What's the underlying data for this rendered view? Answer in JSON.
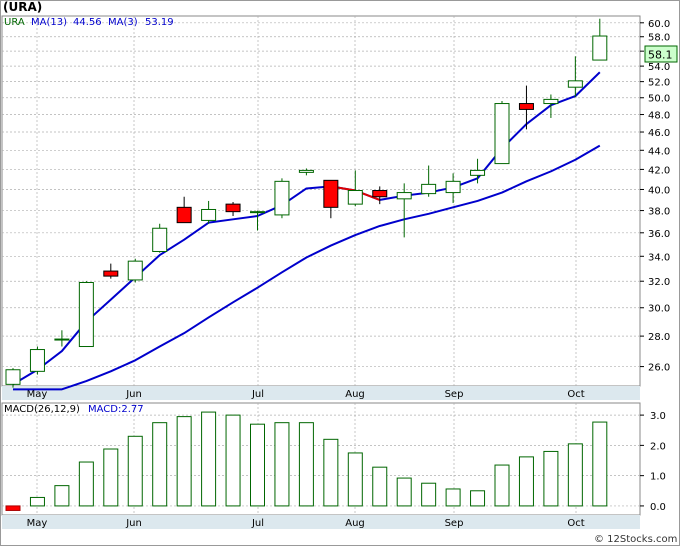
{
  "title": "(URA)",
  "watermark": "© 12Stocks.com",
  "colors": {
    "up_stroke": "#006600",
    "down_fill": "#ff0000",
    "ma_fast": "#0000cc",
    "ma_down_segment": "#dd0000",
    "axis_band": "#dce8ee",
    "grid": "#b0b0b0",
    "legend_green": "#006600",
    "legend_blue": "#0000cc",
    "price_tag_bg": "#ccffcc"
  },
  "price_panel": {
    "legend_ticker": "URA",
    "ma_fast_label": "MA(13)",
    "ma_fast_value": "44.56",
    "ma_slow_label": "MA(3)",
    "ma_slow_value": "53.19",
    "last_price_tag": "58.1",
    "y_ticks": [
      "60.0",
      "58.0",
      "56.0",
      "54.0",
      "52.0",
      "50.0",
      "48.0",
      "46.0",
      "44.0",
      "42.0",
      "40.0",
      "38.0",
      "36.0",
      "34.0",
      "32.0",
      "30.0",
      "28.0",
      "26.0"
    ],
    "x_labels": [
      "May",
      "Jun",
      "Jul",
      "Aug",
      "Sep",
      "Oct"
    ]
  },
  "macd_panel": {
    "label_left": "MACD(26,12,9)",
    "label_right": "MACD:2.77",
    "y_ticks": [
      "3.0",
      "2.0",
      "1.0",
      "0.0"
    ],
    "x_labels": [
      "May",
      "Jun",
      "Jul",
      "Aug",
      "Sep",
      "Oct"
    ]
  },
  "chart_data": [
    {
      "type": "candlestick",
      "title": "(URA)",
      "y_scale": "log",
      "ylim": [
        24.8,
        61.0
      ],
      "x_axis_months": [
        "May",
        "Jun",
        "Jul",
        "Aug",
        "Sep",
        "Oct"
      ],
      "candles": [
        {
          "o": 24.9,
          "h": 25.9,
          "l": 24.7,
          "c": 25.8
        },
        {
          "o": 25.7,
          "h": 27.3,
          "l": 25.5,
          "c": 27.1
        },
        {
          "o": 27.8,
          "h": 28.4,
          "l": 27.3,
          "c": 27.8
        },
        {
          "o": 27.3,
          "h": 32.0,
          "l": 27.3,
          "c": 31.9
        },
        {
          "o": 32.8,
          "h": 33.4,
          "l": 32.2,
          "c": 32.4
        },
        {
          "o": 32.1,
          "h": 33.8,
          "l": 31.9,
          "c": 33.6
        },
        {
          "o": 34.4,
          "h": 36.8,
          "l": 34.3,
          "c": 36.4
        },
        {
          "o": 38.3,
          "h": 39.3,
          "l": 36.9,
          "c": 36.9
        },
        {
          "o": 37.1,
          "h": 38.9,
          "l": 36.8,
          "c": 38.1
        },
        {
          "o": 38.6,
          "h": 38.8,
          "l": 37.5,
          "c": 37.9
        },
        {
          "o": 37.9,
          "h": 38.0,
          "l": 36.2,
          "c": 37.9
        },
        {
          "o": 37.6,
          "h": 41.1,
          "l": 37.3,
          "c": 40.8
        },
        {
          "o": 41.7,
          "h": 42.1,
          "l": 41.4,
          "c": 41.9
        },
        {
          "o": 40.9,
          "h": 40.9,
          "l": 37.3,
          "c": 38.3
        },
        {
          "o": 38.6,
          "h": 41.9,
          "l": 38.4,
          "c": 39.9
        },
        {
          "o": 39.9,
          "h": 40.3,
          "l": 38.6,
          "c": 39.3
        },
        {
          "o": 39.1,
          "h": 40.6,
          "l": 35.6,
          "c": 39.7
        },
        {
          "o": 39.6,
          "h": 42.4,
          "l": 39.3,
          "c": 40.5
        },
        {
          "o": 39.7,
          "h": 41.6,
          "l": 38.7,
          "c": 40.8
        },
        {
          "o": 41.4,
          "h": 43.1,
          "l": 40.6,
          "c": 41.9
        },
        {
          "o": 42.6,
          "h": 49.6,
          "l": 42.6,
          "c": 49.3
        },
        {
          "o": 49.3,
          "h": 51.5,
          "l": 46.3,
          "c": 48.6
        },
        {
          "o": 49.3,
          "h": 50.4,
          "l": 47.6,
          "c": 49.8
        },
        {
          "o": 51.3,
          "h": 55.3,
          "l": 50.1,
          "c": 52.1
        },
        {
          "o": 54.8,
          "h": 60.6,
          "l": 54.8,
          "c": 58.1
        }
      ],
      "ma_fast": [
        24.9,
        25.8,
        27.0,
        29.0,
        30.6,
        32.3,
        34.1,
        35.4,
        36.9,
        37.2,
        37.5,
        38.5,
        40.1,
        40.3,
        39.9,
        39.0,
        39.4,
        39.7,
        40.2,
        41.1,
        44.2,
        46.9,
        49.1,
        50.2,
        53.2
      ],
      "ma_slow": [
        24.6,
        24.6,
        24.6,
        25.1,
        25.7,
        26.4,
        27.3,
        28.2,
        29.3,
        30.4,
        31.5,
        32.7,
        33.9,
        34.9,
        35.8,
        36.6,
        37.2,
        37.7,
        38.3,
        38.9,
        39.7,
        40.8,
        41.8,
        43.0,
        44.5
      ]
    },
    {
      "type": "bar",
      "title": "MACD(26,12,9)",
      "ylim": [
        -0.3,
        3.4
      ],
      "values": [
        -0.15,
        0.28,
        0.67,
        1.45,
        1.88,
        2.3,
        2.75,
        2.95,
        3.1,
        3.0,
        2.7,
        2.75,
        2.75,
        2.2,
        1.75,
        1.28,
        0.92,
        0.75,
        0.56,
        0.5,
        1.35,
        1.62,
        1.8,
        2.05,
        2.77
      ]
    }
  ]
}
